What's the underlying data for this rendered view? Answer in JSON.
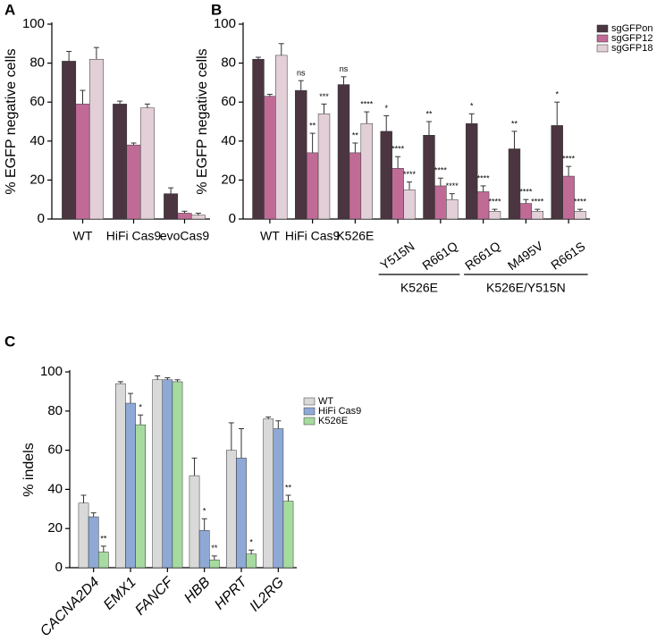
{
  "chart_data": [
    {
      "type": "bar",
      "panel": "A",
      "ylabel": "% EGFP negative cells",
      "categories": [
        "WT",
        "HiFi Cas9",
        "evoCas9"
      ],
      "series": [
        {
          "color": "#4a3540",
          "values": [
            81,
            59,
            13
          ],
          "errors": [
            5,
            1.5,
            3
          ]
        },
        {
          "color": "#c06b96",
          "values": [
            59,
            38,
            3
          ],
          "errors": [
            7,
            1,
            1
          ]
        },
        {
          "color": "#e3cfd8",
          "values": [
            82,
            57,
            2
          ],
          "errors": [
            6,
            2,
            1
          ]
        }
      ],
      "ylim": [
        0,
        100
      ],
      "yticks": [
        0,
        20,
        40,
        60,
        80,
        100
      ]
    },
    {
      "type": "bar",
      "panel": "B",
      "ylabel": "% EGFP negative cells",
      "categories": [
        "WT",
        "HiFi Cas9",
        "K526E",
        "Y515N",
        "R661Q",
        "R661Q",
        "M495V",
        "R661S"
      ],
      "group_labels": [
        "K526E",
        "K526E/Y515N"
      ],
      "series": [
        {
          "name": "sgGFPon",
          "color": "#4a3540",
          "values": [
            82,
            66,
            69,
            45,
            43,
            49,
            36,
            48
          ],
          "errors": [
            1,
            5,
            4,
            8,
            7,
            5,
            9,
            12
          ],
          "annotations": [
            null,
            "ns",
            "ns",
            "*",
            "**",
            "*",
            "**",
            "*"
          ]
        },
        {
          "name": "sgGFP12",
          "color": "#c06b96",
          "values": [
            63,
            34,
            34,
            26,
            17,
            14,
            8,
            22
          ],
          "errors": [
            1,
            10,
            5,
            6,
            4,
            3,
            2,
            5
          ],
          "annotations": [
            null,
            "**",
            "**",
            "****",
            "****",
            "****",
            "****",
            "****"
          ]
        },
        {
          "name": "sgGFP18",
          "color": "#e3cfd8",
          "values": [
            84,
            54,
            49,
            15,
            10,
            4,
            4,
            4
          ],
          "errors": [
            6,
            5,
            6,
            4,
            3,
            1,
            1,
            1
          ],
          "annotations": [
            null,
            "***",
            "****",
            "****",
            "****",
            "****",
            "****",
            "****"
          ]
        }
      ],
      "ylim": [
        0,
        100
      ],
      "yticks": [
        0,
        20,
        40,
        60,
        80,
        100
      ]
    },
    {
      "type": "bar",
      "panel": "C",
      "ylabel": "% indels",
      "categories": [
        "CACNA2D4",
        "EMX1",
        "FANCF",
        "HBB",
        "HPRT",
        "IL2RG"
      ],
      "series": [
        {
          "name": "WT",
          "color": "#d9d9d9",
          "values": [
            33,
            94,
            96,
            47,
            60,
            76
          ],
          "errors": [
            4,
            1,
            2,
            9,
            14,
            1
          ],
          "annotations": [
            null,
            null,
            null,
            null,
            null,
            null
          ]
        },
        {
          "name": "HiFi Cas9",
          "color": "#8fa9d6",
          "values": [
            26,
            84,
            96,
            19,
            56,
            71
          ],
          "errors": [
            2,
            5,
            1,
            6,
            15,
            4
          ],
          "annotations": [
            null,
            null,
            null,
            "*",
            null,
            null
          ]
        },
        {
          "name": "K526E",
          "color": "#a6dba0",
          "values": [
            8,
            73,
            95,
            4,
            7,
            34
          ],
          "errors": [
            3,
            5,
            1,
            2,
            2,
            3
          ],
          "annotations": [
            "**",
            "*",
            null,
            "**",
            "*",
            "**"
          ]
        }
      ],
      "ylim": [
        0,
        100
      ],
      "yticks": [
        0,
        20,
        40,
        60,
        80,
        100
      ]
    }
  ]
}
